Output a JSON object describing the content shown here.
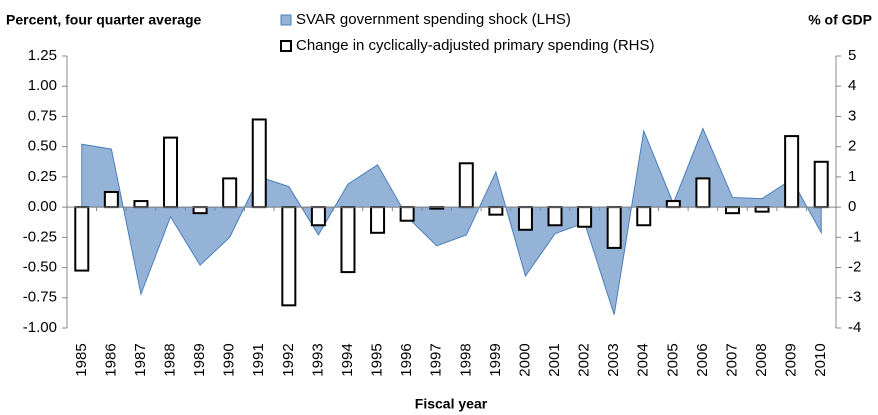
{
  "chart_data": {
    "type": "combo",
    "y_label": "Percent, four quarter average",
    "y2_label": "% of GDP",
    "x_label": "Fiscal year",
    "categories": [
      "1985",
      "1986",
      "1987",
      "1988",
      "1989",
      "1990",
      "1991",
      "1992",
      "1993",
      "1994",
      "1995",
      "1996",
      "1997",
      "1998",
      "1999",
      "2000",
      "2001",
      "2002",
      "2003",
      "2004",
      "2005",
      "2006",
      "2007",
      "2008",
      "2009",
      "2010"
    ],
    "series": [
      {
        "name": "SVAR government spending shock (LHS)",
        "type": "area",
        "color": "#95b3d7",
        "values": [
          0.52,
          0.48,
          -0.72,
          -0.08,
          -0.48,
          -0.25,
          0.25,
          0.17,
          -0.23,
          0.19,
          0.35,
          -0.08,
          -0.32,
          -0.23,
          0.29,
          -0.57,
          -0.22,
          -0.13,
          -0.89,
          0.63,
          0.03,
          0.65,
          0.08,
          0.07,
          0.23,
          -0.21
        ]
      },
      {
        "name": "Change in cyclically-adjusted primary spending (RHS)",
        "type": "bar",
        "axis": "y2",
        "color": "#ffffff",
        "values": [
          -2.1,
          0.5,
          0.2,
          2.3,
          -0.2,
          0.95,
          2.9,
          -3.25,
          -0.6,
          -2.15,
          -0.85,
          -0.45,
          -0.05,
          1.45,
          -0.25,
          -0.75,
          -0.6,
          -0.65,
          -1.35,
          -0.6,
          0.2,
          0.95,
          -0.2,
          -0.15,
          2.35,
          1.5
        ]
      }
    ],
    "ylim": [
      -1,
      1.25
    ],
    "yticks": [
      1.25,
      {
        "value": 1,
        "label": "1.00"
      },
      0.75,
      {
        "value": 0.5,
        "label": "0.50"
      },
      0.25,
      {
        "value": 0,
        "label": "0.00"
      },
      -0.25,
      {
        "value": -0.5,
        "label": "-0.50"
      },
      -0.75,
      {
        "value": -1,
        "label": "-1.00"
      }
    ],
    "y2lim": [
      -4,
      5
    ],
    "y2ticks": [
      5,
      4,
      3,
      2,
      1,
      0,
      -1,
      -2,
      -3,
      -4
    ]
  }
}
